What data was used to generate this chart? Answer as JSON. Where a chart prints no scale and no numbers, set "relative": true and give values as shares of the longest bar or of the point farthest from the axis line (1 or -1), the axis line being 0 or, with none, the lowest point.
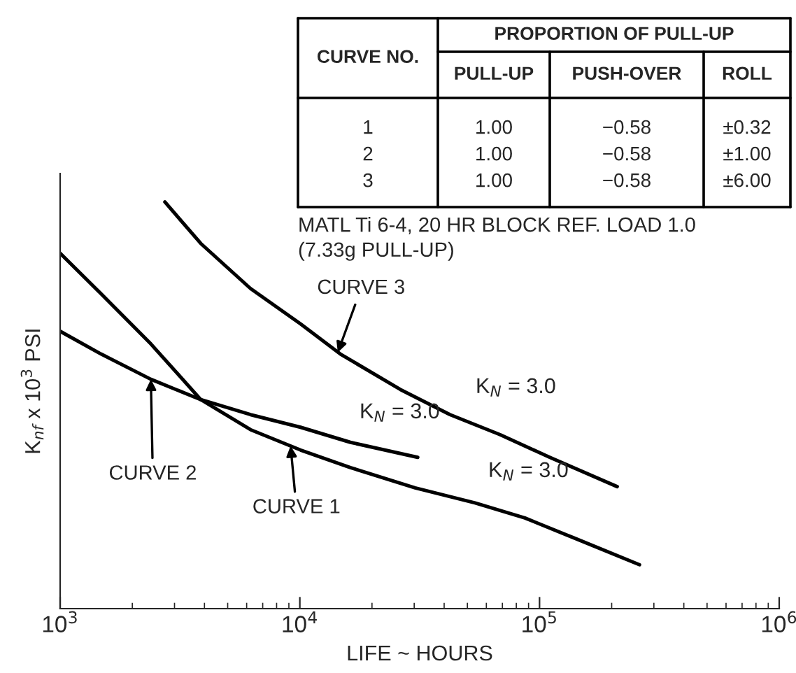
{
  "chart_data": {
    "type": "line",
    "relative": true,
    "xlabel": "LIFE ~ HOURS",
    "ylabel": "K$_{nf}$ x 10$^{3}$ PSI",
    "log": "x",
    "xlim": [
      1000,
      1000000
    ],
    "xticks": [
      {
        "value": 1000,
        "label": "10$^{3}$"
      },
      {
        "value": 10000,
        "label": "10$^{4}$"
      },
      {
        "value": 100000,
        "label": "10$^{5}$"
      },
      {
        "value": 1000000,
        "label": "10$^{6}$"
      }
    ],
    "grid": false,
    "legend": false,
    "marker": "none",
    "line_style": "solid",
    "series": [
      {
        "color": "#000000",
        "x": [
          1000,
          1482,
          2390,
          3860,
          6230,
          10070,
          16250,
          30270,
          53830,
          86880,
          140300,
          261300
        ],
        "values": [
          0.874,
          0.774,
          0.651,
          0.514,
          0.44,
          0.39,
          0.347,
          0.297,
          0.26,
          0.223,
          0.173,
          0.108
        ]
      },
      {
        "color": "#000000",
        "x": [
          1000,
          1482,
          2390,
          3860,
          6230,
          10070,
          16250,
          31040
        ],
        "values": [
          0.682,
          0.626,
          0.564,
          0.514,
          0.477,
          0.446,
          0.409,
          0.372
        ]
      },
      {
        "color": "#000000",
        "x": [
          2735,
          3860,
          6230,
          10070,
          14760,
          26240,
          42360,
          68390,
          110400,
          210900
        ],
        "values": [
          1.0,
          0.898,
          0.787,
          0.7,
          0.626,
          0.539,
          0.477,
          0.428,
          0.372,
          0.3
        ]
      }
    ],
    "annotations": [
      "CURVE NO.",
      "PROPORTION OF PULL-UP",
      "PULL-UP",
      "PUSH-OVER",
      "ROLL",
      "1",
      "1.00",
      "−0.58",
      "±0.32",
      "2",
      "1.00",
      "−0.58",
      "±1.00",
      "3",
      "1.00",
      "−0.58",
      "±6.00",
      "MATL Ti 6-4, 20 HR BLOCK REF. LOAD 1.0\n(7.33g PULL-UP)",
      {
        "text": "CURVE 3",
        "x": 14400,
        "y": 0.63
      },
      {
        "text": "CURVE 2",
        "x": 2390,
        "y": 0.564
      },
      {
        "text": "CURVE 1",
        "x": 9150,
        "y": 0.4
      },
      "K$_{N}$ = 3.0",
      "K$_{N}$ = 3.0",
      "K$_{N}$ = 3.0"
    ]
  }
}
